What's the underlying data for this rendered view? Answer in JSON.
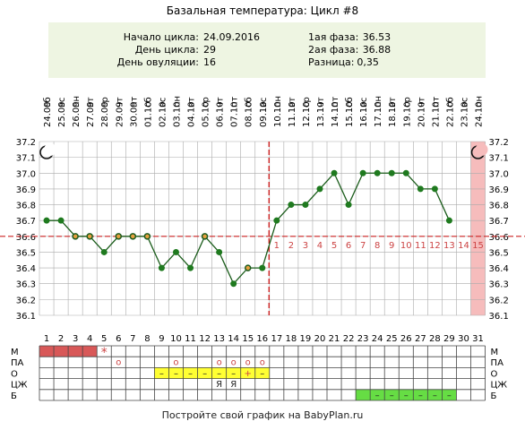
{
  "title": "Базальная температура: Цикл #8",
  "info": {
    "left": [
      {
        "label": "Начало цикла:",
        "value": "24.09.2016"
      },
      {
        "label": "День цикла:",
        "value": "29"
      },
      {
        "label": "День овуляции:",
        "value": "16"
      }
    ],
    "right": [
      {
        "label": "1ая фаза:",
        "value": "36.53"
      },
      {
        "label": "2ая фаза:",
        "value": "36.88"
      },
      {
        "label": "Разница:",
        "value": "0,35"
      }
    ]
  },
  "footer": "Постройте свой график на BabyPlan.ru",
  "colors": {
    "grid": "#aaaaaa",
    "line": "#1a5c1a",
    "point": "#1f7a1f",
    "coverline": "#cc2222",
    "ovulation_line": "#cc2222",
    "info_bg": "#eef5e2",
    "today_bg": "#f6bcbc",
    "menses": "#d85858",
    "yellow": "#ffff33",
    "green": "#66dd44",
    "marker_red": "#cc4444"
  },
  "chart_data": {
    "type": "line",
    "title": "Базальная температура: Цикл #8",
    "xlabel": "",
    "ylabel": "",
    "ylim": [
      36.1,
      37.2
    ],
    "y_ticks": [
      "37.2",
      "37.1",
      "37.0",
      "36.9",
      "36.8",
      "36.7",
      "36.6",
      "36.5",
      "36.4",
      "36.3",
      "36.2",
      "36.1"
    ],
    "grid": true,
    "days": [
      "1",
      "2",
      "3",
      "4",
      "5",
      "6",
      "7",
      "8",
      "9",
      "10",
      "11",
      "12",
      "13",
      "14",
      "15",
      "16",
      "17",
      "18",
      "19",
      "20",
      "21",
      "22",
      "23",
      "24",
      "25",
      "26",
      "27",
      "28",
      "29",
      "30",
      "31"
    ],
    "weekdays": [
      "сб",
      "вс",
      "пн",
      "вт",
      "ср",
      "чт",
      "пт",
      "сб",
      "вс",
      "пн",
      "вт",
      "ср",
      "чт",
      "пт",
      "сб",
      "вс",
      "пн",
      "вт",
      "ср",
      "чт",
      "пт",
      "сб",
      "вс",
      "пн",
      "вт",
      "ср",
      "чт",
      "пт",
      "сб",
      "вс",
      "пн"
    ],
    "dates": [
      "24.09",
      "25.09",
      "26.09",
      "27.09",
      "28.09",
      "29.09",
      "30.09",
      "01.10",
      "02.10",
      "03.10",
      "04.10",
      "05.10",
      "06.10",
      "07.10",
      "08.10",
      "09.10",
      "10.10",
      "11.10",
      "12.10",
      "13.10",
      "14.10",
      "15.10",
      "16.10",
      "17.10",
      "18.10",
      "19.10",
      "20.10",
      "21.10",
      "22.10",
      "23.10",
      "24.10"
    ],
    "series": [
      {
        "values": [
          36.7,
          36.7,
          36.6,
          36.6,
          36.5,
          36.6,
          36.6,
          36.6,
          36.4,
          36.5,
          36.4,
          36.6,
          36.5,
          36.3,
          36.4,
          36.4,
          36.7,
          36.8,
          36.8,
          36.9,
          37.0,
          36.8,
          37.0,
          37.0,
          37.0,
          37.0,
          36.9,
          36.9,
          36.7,
          null,
          null
        ],
        "open_points": [
          3,
          4,
          6,
          7,
          8,
          12,
          15
        ]
      }
    ],
    "coverline": 36.6,
    "ovulation_day": 16,
    "phase2_day_labels": [
      "1",
      "2",
      "3",
      "4",
      "5",
      "6",
      "7",
      "8",
      "9",
      "10",
      "11",
      "12",
      "13",
      "14",
      "15"
    ],
    "phase2_start_day": 17,
    "moon_icon_days": [
      1,
      31
    ],
    "today_day": 31,
    "rows": [
      {
        "label": "М",
        "cells": {
          "1": "fill",
          "2": "fill",
          "3": "fill",
          "4": "fill",
          "5": "*"
        }
      },
      {
        "label": "ПА",
        "cells": {
          "6": "o",
          "10": "o",
          "13": "o",
          "14": "o",
          "15": "o",
          "16": "o"
        }
      },
      {
        "label": "О",
        "cells": {
          "9": "–",
          "10": "–",
          "11": "–",
          "12": "–",
          "13": "–",
          "14": "–",
          "15": "+",
          "16": "–"
        },
        "highlight": [
          9,
          16
        ]
      },
      {
        "label": "ЦЖ",
        "cells": {
          "13": "Я",
          "14": "Я"
        }
      },
      {
        "label": "Б",
        "cells": {
          "24": "–",
          "25": "–",
          "26": "–",
          "27": "–",
          "28": "–",
          "29": "–"
        },
        "highlight": [
          23,
          29
        ]
      }
    ]
  }
}
